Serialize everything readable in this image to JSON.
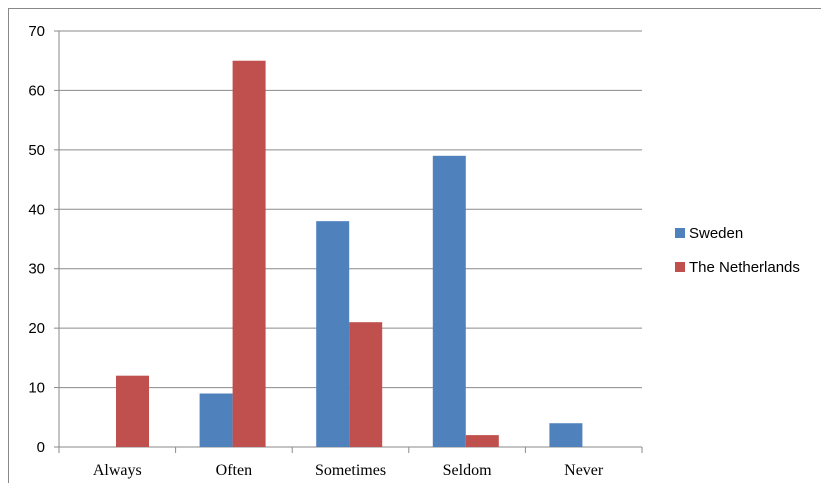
{
  "chart_data": {
    "type": "bar",
    "categories": [
      "Always",
      "Often",
      "Sometimes",
      "Seldom",
      "Never"
    ],
    "series": [
      {
        "name": "Sweden",
        "color": "#4F81BD",
        "values": [
          0,
          9,
          38,
          49,
          4
        ]
      },
      {
        "name": "The Netherlands",
        "color": "#C0504D",
        "values": [
          12,
          65,
          21,
          2,
          0
        ]
      }
    ],
    "yticks": [
      0,
      10,
      20,
      30,
      40,
      50,
      60,
      70
    ],
    "ylim": [
      0,
      70
    ],
    "grid": true,
    "legend_position": "right"
  }
}
